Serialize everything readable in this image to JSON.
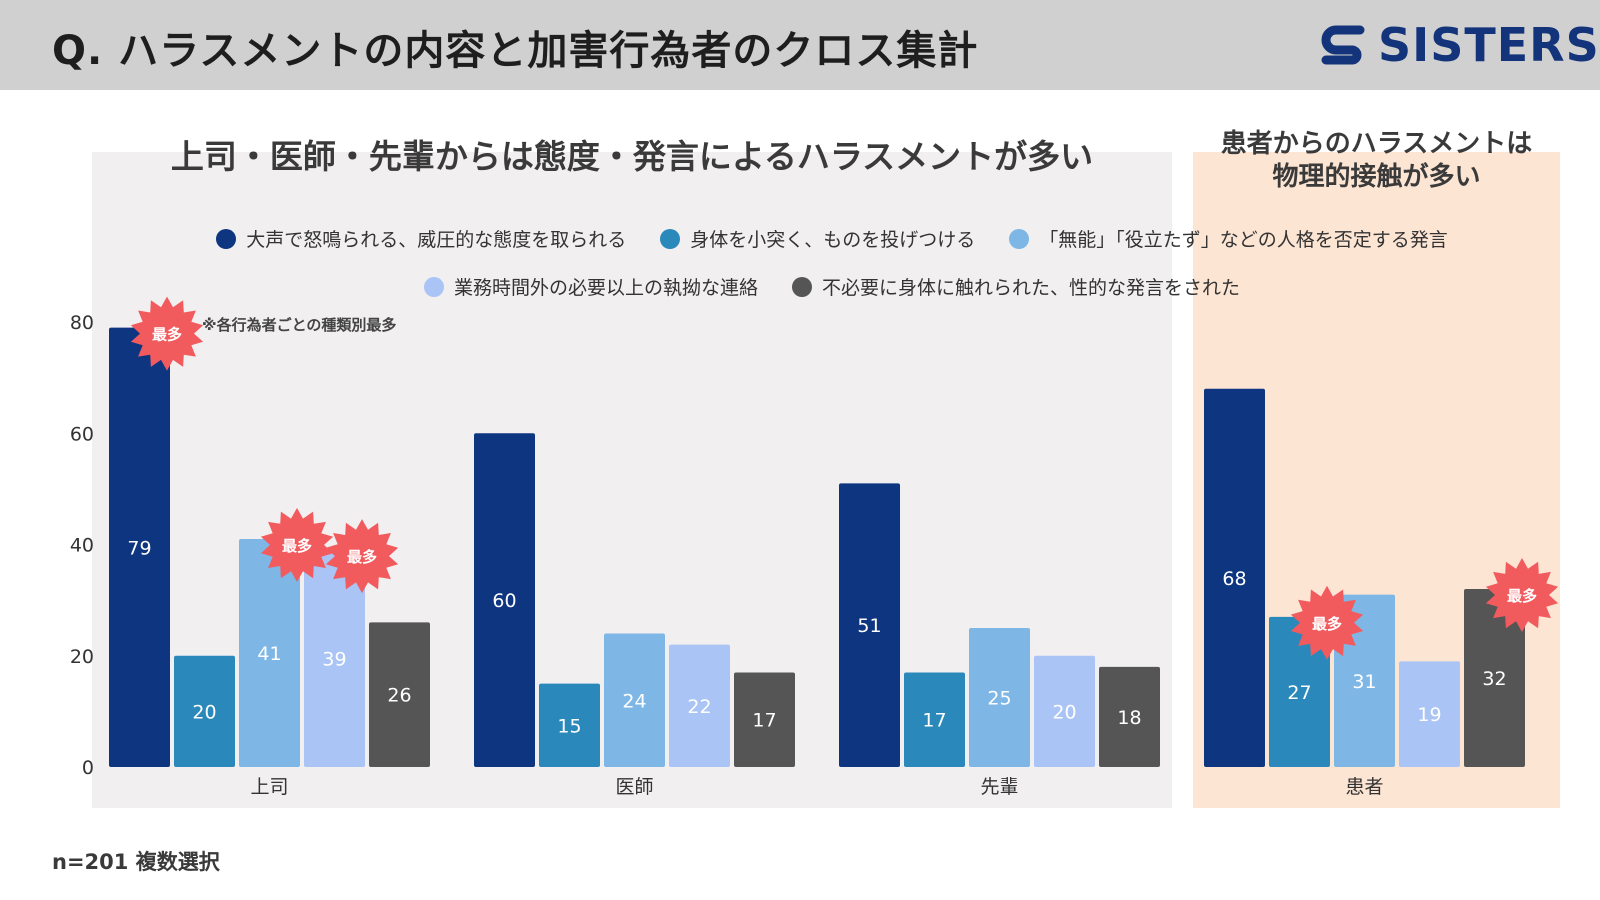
{
  "header": {
    "title": "Q. ハラスメントの内容と加害行為者のクロス集計",
    "logo_text": "SISTERS"
  },
  "subtitles": {
    "left": "上司・医師・先輩からは態度・発言によるハラスメントが多い",
    "right_line1": "患者からのハラスメントは",
    "right_line2": "物理的接触が多い"
  },
  "note": "※各行為者ごとの種類別最多",
  "badge_label": "最多",
  "footer": "n=201 複数選択",
  "colors": {
    "series": [
      "#0e3580",
      "#2a88bb",
      "#7eb7e5",
      "#aac4f5",
      "#555555"
    ],
    "badge": "#f25b5e",
    "left_panel": "#f1eff0",
    "right_panel": "#fde5d4"
  },
  "chart_data": {
    "type": "bar",
    "categories": [
      "上司",
      "医師",
      "先輩",
      "患者"
    ],
    "series": [
      {
        "name": "大声で怒鳴られる、威圧的な態度を取られる",
        "values": [
          79,
          60,
          51,
          68
        ]
      },
      {
        "name": "身体を小突く、ものを投げつける",
        "values": [
          20,
          15,
          17,
          27
        ]
      },
      {
        "name": "「無能」「役立たず」などの人格を否定する発言",
        "values": [
          41,
          24,
          25,
          31
        ]
      },
      {
        "name": "業務時間外の必要以上の執拗な連絡",
        "values": [
          39,
          22,
          20,
          19
        ]
      },
      {
        "name": "不必要に身体に触れられた、性的な発言をされた",
        "values": [
          26,
          17,
          18,
          32
        ]
      }
    ],
    "y_ticks": [
      0,
      20,
      40,
      60,
      80
    ],
    "ylim": [
      0,
      80
    ],
    "legend_position": "top-center",
    "grid": false,
    "highlights": [
      {
        "category": 0,
        "series": 0
      },
      {
        "category": 0,
        "series": 2
      },
      {
        "category": 0,
        "series": 3
      },
      {
        "category": 3,
        "series": 1
      },
      {
        "category": 3,
        "series": 4
      }
    ]
  }
}
